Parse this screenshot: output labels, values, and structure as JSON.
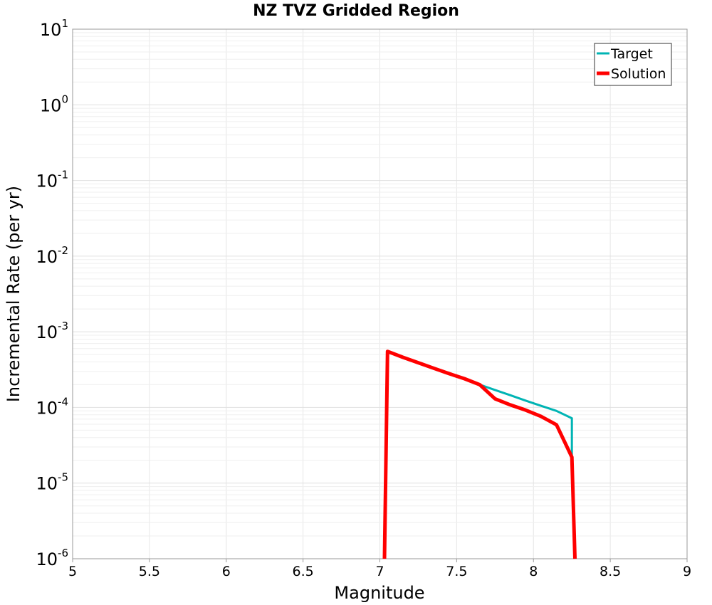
{
  "chart_data": {
    "type": "line",
    "title": "NZ TVZ Gridded Region",
    "xlabel": "Magnitude",
    "ylabel": "Incremental Rate (per yr)",
    "xlim": [
      5,
      9
    ],
    "ylim": [
      1e-06,
      10
    ],
    "yscale": "log",
    "grid": true,
    "legend_position": "top-right",
    "xticks": [
      "5",
      "5.5",
      "6",
      "6.5",
      "7",
      "7.5",
      "8",
      "8.5",
      "9"
    ],
    "yticks": [
      {
        "base": "10",
        "exp": "1"
      },
      {
        "base": "10",
        "exp": "0"
      },
      {
        "base": "10",
        "exp": "-1"
      },
      {
        "base": "10",
        "exp": "-2"
      },
      {
        "base": "10",
        "exp": "-3"
      },
      {
        "base": "10",
        "exp": "-4"
      },
      {
        "base": "10",
        "exp": "-5"
      },
      {
        "base": "10",
        "exp": "-6"
      }
    ],
    "series": [
      {
        "name": "Target",
        "color": "#00b4b4",
        "x": [
          7.03,
          7.05,
          7.15,
          7.25,
          7.35,
          7.45,
          7.55,
          7.65,
          7.75,
          7.85,
          7.95,
          8.05,
          8.15,
          8.25,
          8.25,
          8.27
        ],
        "y": [
          1e-06,
          0.00055,
          0.00046,
          0.00039,
          0.00033,
          0.00028,
          0.00024,
          0.0002,
          0.00017,
          0.000145,
          0.000123,
          0.000105,
          9e-05,
          7.2e-05,
          2.2e-05,
          1e-06
        ]
      },
      {
        "name": "Solution",
        "color": "#ff0000",
        "x": [
          7.03,
          7.05,
          7.15,
          7.25,
          7.35,
          7.45,
          7.55,
          7.65,
          7.75,
          7.85,
          7.95,
          8.05,
          8.15,
          8.25,
          8.27
        ],
        "y": [
          1e-06,
          0.00055,
          0.00046,
          0.00039,
          0.00033,
          0.00028,
          0.00024,
          0.0002,
          0.00013,
          0.000108,
          9.2e-05,
          7.6e-05,
          5.9e-05,
          2.2e-05,
          1e-06
        ]
      }
    ]
  }
}
